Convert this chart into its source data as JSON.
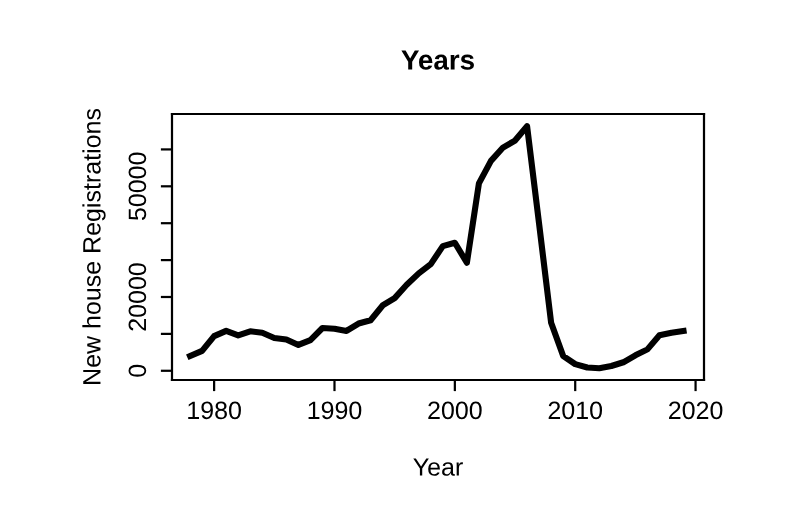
{
  "chart_data": {
    "type": "line",
    "title": "Years",
    "xlabel": "Year",
    "ylabel": "New house Registrations",
    "x": [
      1978,
      1979,
      1980,
      1981,
      1982,
      1983,
      1984,
      1985,
      1986,
      1987,
      1988,
      1989,
      1990,
      1991,
      1992,
      1993,
      1994,
      1995,
      1996,
      1997,
      1998,
      1999,
      2000,
      2001,
      2002,
      2003,
      2004,
      2005,
      2006,
      2007,
      2008,
      2009,
      2010,
      2011,
      2012,
      2013,
      2014,
      2015,
      2016,
      2017,
      2018,
      2019
    ],
    "series": [
      {
        "color": "#000000",
        "values": [
          4000,
          5400,
          9400,
          10800,
          9600,
          10700,
          10300,
          8900,
          8500,
          7000,
          8300,
          11600,
          11400,
          10800,
          12800,
          13700,
          17700,
          19700,
          23300,
          26400,
          28900,
          33800,
          34700,
          29300,
          50800,
          56900,
          60500,
          62400,
          66300,
          39800,
          13000,
          4000,
          1800,
          900,
          700,
          1300,
          2300,
          4200,
          5800,
          9600,
          10300,
          10800
        ]
      }
    ],
    "xlim": [
      1976.5,
      2020.7
    ],
    "xticks": [
      1980,
      1990,
      2000,
      2010,
      2020
    ],
    "ylim": [
      -2500,
      69600
    ],
    "yticks": [
      0,
      {
        "value": 10000,
        "label": null
      },
      20000,
      {
        "value": 30000,
        "label": null
      },
      {
        "value": 40000,
        "label": null
      },
      50000,
      {
        "value": 60000,
        "label": null
      }
    ],
    "grid": false,
    "marker": "none",
    "line_style": "solid"
  }
}
